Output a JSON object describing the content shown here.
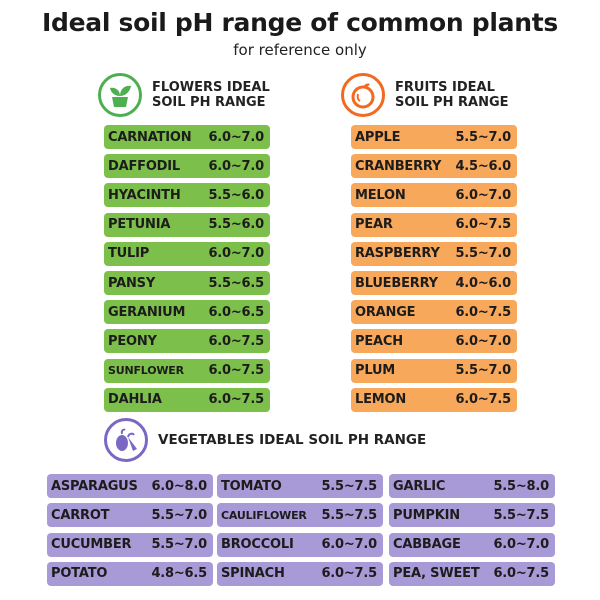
{
  "title": "Ideal soil pH range of common plants",
  "subtitle": "for reference only",
  "colors": {
    "flowers": "#7dbf4b",
    "fruits": "#f8a85b",
    "vegetables": "#a89ad6",
    "flowers_icon": "#4caf50",
    "fruits_icon": "#f26a21",
    "vegetables_icon": "#7b68c4"
  },
  "flowers": {
    "icon": "potted-plant-icon",
    "heading_line1": "FLOWERS IDEAL",
    "heading_line2": "SOIL PH RANGE",
    "items": [
      {
        "name": "CARNATION",
        "ph": "6.0~7.0"
      },
      {
        "name": "DAFFODIL",
        "ph": "6.0~7.0"
      },
      {
        "name": "HYACINTH",
        "ph": "5.5~6.0"
      },
      {
        "name": "PETUNIA",
        "ph": "5.5~6.0"
      },
      {
        "name": "TULIP",
        "ph": "6.0~7.0"
      },
      {
        "name": "PANSY",
        "ph": "5.5~6.5"
      },
      {
        "name": "GERANIUM",
        "ph": "6.0~6.5"
      },
      {
        "name": "PEONY",
        "ph": "6.0~7.5"
      },
      {
        "name": "SUNFLOWER",
        "ph": "6.0~7.5"
      },
      {
        "name": "DAHLIA",
        "ph": "6.0~7.5"
      }
    ]
  },
  "fruits": {
    "icon": "apple-icon",
    "heading_line1": "FRUITS IDEAL",
    "heading_line2": "SOIL PH RANGE",
    "items": [
      {
        "name": "APPLE",
        "ph": "5.5~7.0"
      },
      {
        "name": "CRANBERRY",
        "ph": "4.5~6.0"
      },
      {
        "name": "MELON",
        "ph": "6.0~7.0"
      },
      {
        "name": "PEAR",
        "ph": "6.0~7.5"
      },
      {
        "name": "RASPBERRY",
        "ph": "5.5~7.0"
      },
      {
        "name": "BLUEBERRY",
        "ph": "4.0~6.0"
      },
      {
        "name": "ORANGE",
        "ph": "6.0~7.5"
      },
      {
        "name": "PEACH",
        "ph": "6.0~7.0"
      },
      {
        "name": "PLUM",
        "ph": "5.5~7.0"
      },
      {
        "name": "LEMON",
        "ph": "6.0~7.5"
      }
    ]
  },
  "vegetables": {
    "icon": "vegetables-icon",
    "heading": "VEGETABLES IDEAL  SOIL PH RANGE",
    "columns": [
      [
        {
          "name": "ASPARAGUS",
          "ph": "6.0~8.0"
        },
        {
          "name": "CARROT",
          "ph": "5.5~7.0"
        },
        {
          "name": "CUCUMBER",
          "ph": "5.5~7.0"
        },
        {
          "name": "POTATO",
          "ph": "4.8~6.5"
        }
      ],
      [
        {
          "name": "TOMATO",
          "ph": "5.5~7.5"
        },
        {
          "name": "CAULIFLOWER",
          "ph": "5.5~7.5"
        },
        {
          "name": "BROCCOLI",
          "ph": "6.0~7.0"
        },
        {
          "name": "SPINACH",
          "ph": "6.0~7.5"
        }
      ],
      [
        {
          "name": "GARLIC",
          "ph": "5.5~8.0"
        },
        {
          "name": "PUMPKIN",
          "ph": "5.5~7.5"
        },
        {
          "name": "CABBAGE",
          "ph": "6.0~7.0"
        },
        {
          "name": "PEA, SWEET",
          "ph": "6.0~7.5"
        }
      ]
    ]
  }
}
